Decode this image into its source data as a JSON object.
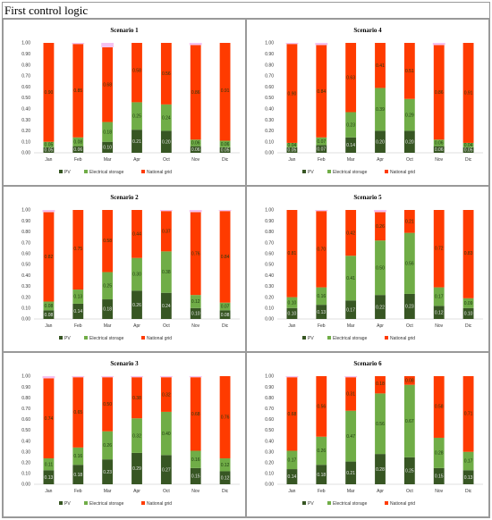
{
  "page_title": "First control logic",
  "colors": {
    "pv": "#375623",
    "storage": "#70ad47",
    "grid": "#ff3b00",
    "overflow": "#f4c2f0"
  },
  "chart_data": [
    {
      "type": "bar",
      "title": "Scenario 1",
      "categories": [
        "Jan",
        "Feb",
        "Mar",
        "Apr",
        "Oct",
        "Nov",
        "Dic"
      ],
      "ylim": [
        0,
        1
      ],
      "yticks": [
        "0.00",
        "0.10",
        "0.20",
        "0.30",
        "0.40",
        "0.50",
        "0.60",
        "0.70",
        "0.80",
        "0.90",
        "1.00"
      ],
      "legend": [
        "PV",
        "Electrical storage",
        "National grid"
      ],
      "series": [
        {
          "name": "PV",
          "values": [
            0.05,
            0.06,
            0.1,
            0.21,
            0.2,
            0.06,
            0.05
          ],
          "labels": [
            "0.05",
            "0.06",
            "0.10",
            "0.21",
            "0.20",
            "0.06",
            "0.05"
          ]
        },
        {
          "name": "Electrical storage",
          "values": [
            0.05,
            0.08,
            0.18,
            0.25,
            0.24,
            0.06,
            0.06
          ],
          "labels": [
            "0.05",
            "0.08",
            "0.18",
            "0.25",
            "0.24",
            "0.06",
            "0.06"
          ]
        },
        {
          "name": "National grid",
          "values": [
            0.9,
            0.85,
            0.68,
            0.58,
            0.56,
            0.86,
            0.91
          ],
          "labels": [
            "0.90",
            "0.85",
            "0.68",
            "0.58",
            "0.56",
            "0.86",
            "0.91"
          ]
        }
      ]
    },
    {
      "type": "bar",
      "title": "Scenario 4",
      "categories": [
        "Jan",
        "Feb",
        "Mar",
        "Apr",
        "Oct",
        "Nov",
        "Dic"
      ],
      "ylim": [
        0,
        1
      ],
      "yticks": [
        "0.00",
        "0.10",
        "0.20",
        "0.30",
        "0.40",
        "0.50",
        "0.60",
        "0.70",
        "0.80",
        "0.90",
        "1.00"
      ],
      "legend": [
        "PV",
        "Electrical storage",
        "National grid"
      ],
      "series": [
        {
          "name": "PV",
          "values": [
            0.05,
            0.07,
            0.14,
            0.2,
            0.2,
            0.06,
            0.05
          ],
          "labels": [
            "0.05",
            "0.07",
            "0.14",
            "0.20",
            "0.20",
            "0.06",
            "0.05"
          ]
        },
        {
          "name": "Electrical storage",
          "values": [
            0.04,
            0.07,
            0.23,
            0.39,
            0.29,
            0.06,
            0.04
          ],
          "labels": [
            "0.04",
            "0.07",
            "0.23",
            "0.39",
            "0.29",
            "0.06",
            "0.04"
          ]
        },
        {
          "name": "National grid",
          "values": [
            0.9,
            0.84,
            0.63,
            0.41,
            0.51,
            0.86,
            0.91
          ],
          "labels": [
            "0.90",
            "0.84",
            "0.63",
            "0.41",
            "0.51",
            "0.86",
            "0.91"
          ]
        }
      ]
    },
    {
      "type": "bar",
      "title": "Scenario 2",
      "categories": [
        "Jan",
        "Feb",
        "Mar",
        "Apr",
        "Oct",
        "Nov",
        "Dic"
      ],
      "ylim": [
        0,
        1
      ],
      "yticks": [
        "0.00",
        "0.10",
        "0.20",
        "0.30",
        "0.40",
        "0.50",
        "0.60",
        "0.70",
        "0.80",
        "0.90",
        "1.00"
      ],
      "legend": [
        "PV",
        "Electrical storage",
        "National grid"
      ],
      "series": [
        {
          "name": "PV",
          "values": [
            0.08,
            0.14,
            0.18,
            0.26,
            0.24,
            0.1,
            0.08
          ],
          "labels": [
            "0.08",
            "0.14",
            "0.18",
            "0.26",
            "0.24",
            "0.10",
            "0.08"
          ]
        },
        {
          "name": "Electrical storage",
          "values": [
            0.08,
            0.13,
            0.25,
            0.3,
            0.38,
            0.12,
            0.07
          ],
          "labels": [
            "0.08",
            "0.13",
            "0.25",
            "0.30",
            "0.38",
            "0.12",
            "0.07"
          ]
        },
        {
          "name": "National grid",
          "values": [
            0.82,
            0.75,
            0.58,
            0.44,
            0.37,
            0.76,
            0.84
          ],
          "labels": [
            "0.82",
            "0.75",
            "0.58",
            "0.44",
            "0.37",
            "0.76",
            "0.84"
          ]
        }
      ]
    },
    {
      "type": "bar",
      "title": "Scenario 5",
      "categories": [
        "Jan",
        "Feb",
        "Mar",
        "Apr",
        "Oct",
        "Nov",
        "Dic"
      ],
      "ylim": [
        0,
        1
      ],
      "yticks": [
        "0.00",
        "0.10",
        "0.20",
        "0.30",
        "0.40",
        "0.50",
        "0.60",
        "0.70",
        "0.80",
        "0.90",
        "1.00"
      ],
      "legend": [
        "PV",
        "Electrical storage",
        "National grid"
      ],
      "series": [
        {
          "name": "PV",
          "values": [
            0.1,
            0.13,
            0.17,
            0.22,
            0.23,
            0.12,
            0.1
          ],
          "labels": [
            "0.10",
            "0.13",
            "0.17",
            "0.22",
            "0.23",
            "0.12",
            "0.10"
          ]
        },
        {
          "name": "Electrical storage",
          "values": [
            0.1,
            0.16,
            0.41,
            0.5,
            0.56,
            0.17,
            0.09
          ],
          "labels": [
            "0.10",
            "0.16",
            "0.41",
            "0.50",
            "0.56",
            "0.17",
            "0.09"
          ]
        },
        {
          "name": "National grid",
          "values": [
            0.81,
            0.7,
            0.42,
            0.26,
            0.21,
            0.72,
            0.83
          ],
          "labels": [
            "0.81",
            "0.70",
            "0.42",
            "0.26",
            "0.21",
            "0.72",
            "0.83"
          ]
        }
      ]
    },
    {
      "type": "bar",
      "title": "Scenario 3",
      "categories": [
        "Jan",
        "Feb",
        "Mar",
        "Apr",
        "Oct",
        "Nov",
        "Dic"
      ],
      "ylim": [
        0,
        1
      ],
      "yticks": [
        "0.00",
        "0.10",
        "0.20",
        "0.30",
        "0.40",
        "0.50",
        "0.60",
        "0.70",
        "0.80",
        "0.90",
        "1.00"
      ],
      "legend": [
        "PV",
        "Electrical storage",
        "National grid"
      ],
      "series": [
        {
          "name": "PV",
          "values": [
            0.13,
            0.18,
            0.23,
            0.29,
            0.27,
            0.15,
            0.12
          ],
          "labels": [
            "0.13",
            "0.18",
            "0.23",
            "0.29",
            "0.27",
            "0.15",
            "0.12"
          ]
        },
        {
          "name": "Electrical storage",
          "values": [
            0.11,
            0.16,
            0.26,
            0.32,
            0.4,
            0.16,
            0.12
          ],
          "labels": [
            "0.11",
            "0.16",
            "0.26",
            "0.32",
            "0.40",
            "0.16",
            "0.12"
          ]
        },
        {
          "name": "National grid",
          "values": [
            0.74,
            0.65,
            0.5,
            0.38,
            0.32,
            0.68,
            0.76
          ],
          "labels": [
            "0.74",
            "0.65",
            "0.50",
            "0.38",
            "0.32",
            "0.68",
            "0.76"
          ]
        }
      ]
    },
    {
      "type": "bar",
      "title": "Scenario 6",
      "categories": [
        "Jan",
        "Feb",
        "Mar",
        "Apr",
        "Oct",
        "Nov",
        "Dic"
      ],
      "ylim": [
        0,
        1
      ],
      "yticks": [
        "0.00",
        "0.10",
        "0.20",
        "0.30",
        "0.40",
        "0.50",
        "0.60",
        "0.70",
        "0.80",
        "0.90",
        "1.00"
      ],
      "legend": [
        "PV",
        "Electrical storage",
        "National grid"
      ],
      "series": [
        {
          "name": "PV",
          "values": [
            0.14,
            0.18,
            0.21,
            0.28,
            0.25,
            0.15,
            0.13
          ],
          "labels": [
            "0.14",
            "0.18",
            "0.21",
            "0.28",
            "0.25",
            "0.15",
            "0.13"
          ]
        },
        {
          "name": "Electrical storage",
          "values": [
            0.17,
            0.26,
            0.47,
            0.56,
            0.67,
            0.28,
            0.17
          ],
          "labels": [
            "0.17",
            "0.26",
            "0.47",
            "0.56",
            "0.67",
            "0.28",
            "0.17"
          ]
        },
        {
          "name": "National grid",
          "values": [
            0.68,
            0.56,
            0.31,
            0.18,
            0.08,
            0.58,
            0.71
          ],
          "labels": [
            "0.68",
            "0.56",
            "0.31",
            "0.18",
            "0.08",
            "0.58",
            "0.71"
          ]
        }
      ]
    }
  ]
}
